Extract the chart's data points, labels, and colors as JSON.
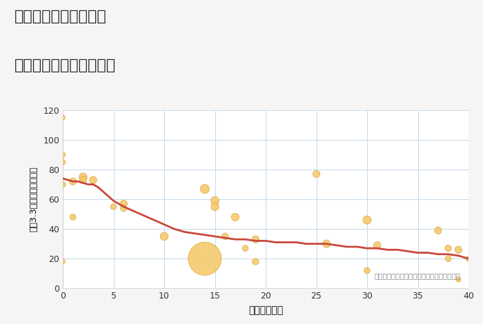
{
  "title_line1": "三重県鈴鹿市三宅町の",
  "title_line2": "築年数別中古戸建て価格",
  "xlabel": "築年数（年）",
  "ylabel": "坪（3.3㎡）単価（万円）",
  "background_color": "#f5f5f5",
  "plot_bg_color": "#ffffff",
  "grid_color": "#c5d8e8",
  "line_color": "#c8483a",
  "bubble_color": "#f5c96a",
  "bubble_edge_color": "#dba840",
  "annotation": "円の大きさは、取引のあった物件面積を示す",
  "xlim": [
    0,
    40
  ],
  "ylim": [
    0,
    120
  ],
  "xticks": [
    0,
    5,
    10,
    15,
    20,
    25,
    30,
    35,
    40
  ],
  "yticks": [
    0,
    20,
    40,
    60,
    80,
    100,
    120
  ],
  "scatter_x": [
    0,
    0,
    0,
    0,
    0,
    1,
    1,
    2,
    2,
    3,
    5,
    6,
    6,
    10,
    14,
    14,
    15,
    15,
    16,
    17,
    18,
    19,
    19,
    25,
    26,
    30,
    30,
    31,
    37,
    38,
    38,
    39,
    39,
    40
  ],
  "scatter_y": [
    115,
    90,
    85,
    70,
    18,
    72,
    48,
    75,
    73,
    73,
    55,
    57,
    54,
    35,
    67,
    20,
    59,
    55,
    35,
    48,
    27,
    33,
    18,
    77,
    30,
    46,
    12,
    29,
    39,
    27,
    20,
    26,
    6,
    20
  ],
  "scatter_size": [
    25,
    30,
    30,
    35,
    25,
    55,
    40,
    70,
    55,
    55,
    40,
    55,
    45,
    70,
    90,
    1200,
    75,
    65,
    45,
    65,
    38,
    55,
    45,
    55,
    65,
    75,
    38,
    55,
    55,
    45,
    38,
    55,
    28,
    28
  ],
  "line_x": [
    0,
    0.5,
    1,
    1.5,
    2,
    2.5,
    3,
    3.5,
    4,
    4.5,
    5,
    6,
    7,
    8,
    9,
    10,
    11,
    12,
    13,
    14,
    15,
    16,
    17,
    18,
    19,
    20,
    21,
    22,
    23,
    24,
    25,
    26,
    27,
    28,
    29,
    30,
    31,
    32,
    33,
    34,
    35,
    36,
    37,
    38,
    39,
    40
  ],
  "line_y": [
    74,
    73,
    72,
    72,
    71,
    70,
    70,
    68,
    65,
    62,
    59,
    55,
    52,
    49,
    46,
    43,
    40,
    38,
    37,
    36,
    35,
    34,
    33,
    33,
    32,
    32,
    31,
    31,
    31,
    30,
    30,
    30,
    29,
    28,
    28,
    27,
    27,
    26,
    26,
    25,
    24,
    24,
    23,
    23,
    22,
    20
  ]
}
